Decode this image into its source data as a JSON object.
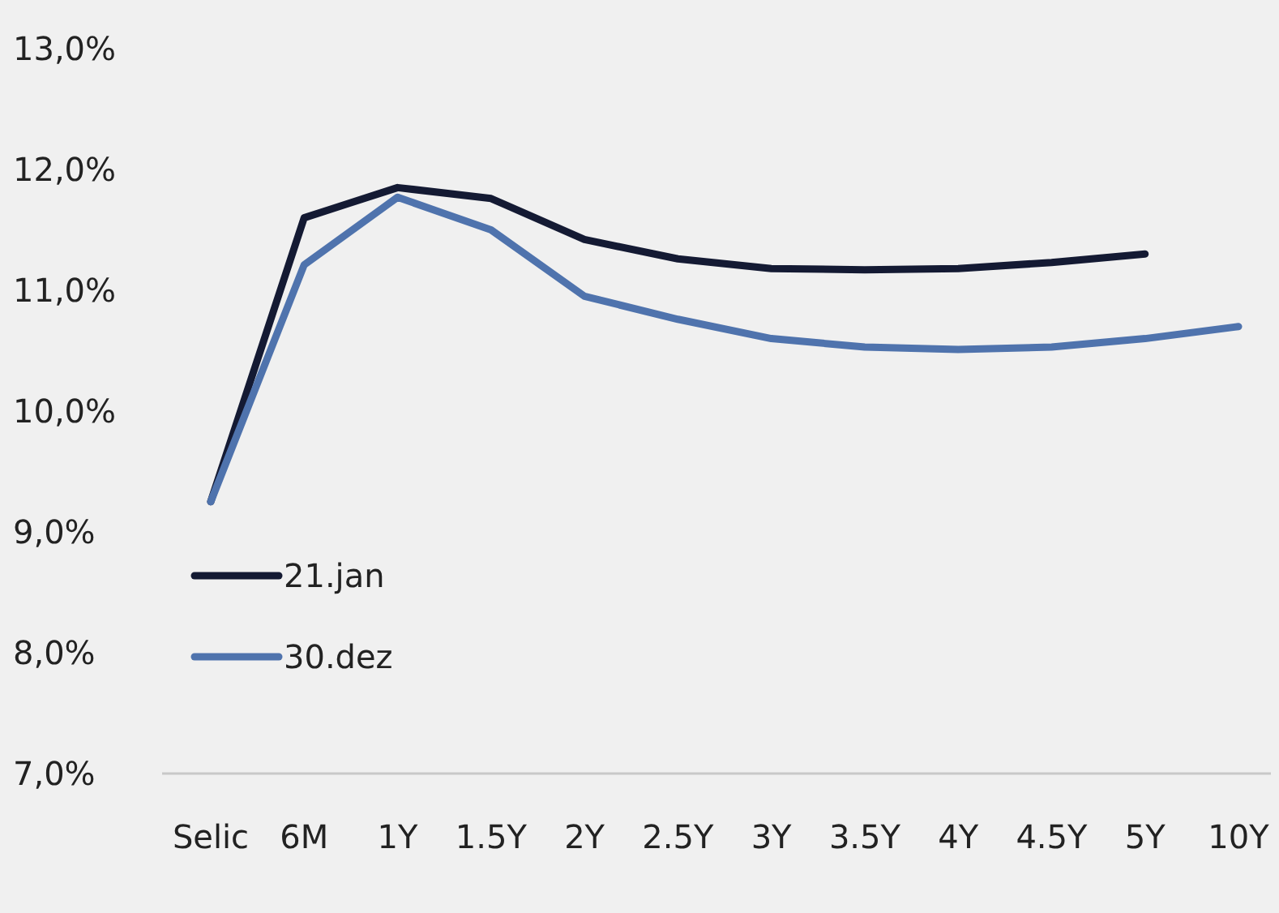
{
  "chart_data": {
    "type": "line",
    "categories": [
      "Selic",
      "6M",
      "1Y",
      "1.5Y",
      "2Y",
      "2.5Y",
      "3Y",
      "3.5Y",
      "4Y",
      "4.5Y",
      "5Y",
      "10Y"
    ],
    "series": [
      {
        "name": "21.jan",
        "color": "#141a33",
        "values": [
          9.25,
          11.6,
          11.85,
          11.76,
          11.42,
          11.26,
          11.18,
          11.17,
          11.18,
          11.23,
          11.3,
          null
        ]
      },
      {
        "name": "30.dez",
        "color": "#4f73ad",
        "values": [
          9.25,
          11.21,
          11.77,
          11.5,
          10.95,
          10.76,
          10.6,
          10.53,
          10.51,
          10.53,
          10.6,
          10.7
        ]
      }
    ],
    "ylim": [
      7,
      13
    ],
    "yticks": [
      {
        "value": 7,
        "label": "7,0%"
      },
      {
        "value": 8,
        "label": "8,0%"
      },
      {
        "value": 9,
        "label": "9,0%"
      },
      {
        "value": 10,
        "label": "10,0%"
      },
      {
        "value": 11,
        "label": "11,0%"
      },
      {
        "value": 12,
        "label": "12,0%"
      },
      {
        "value": 13,
        "label": "13,0%"
      }
    ],
    "grid": false,
    "legend": "left",
    "marker": "none",
    "line_style": "solid"
  }
}
